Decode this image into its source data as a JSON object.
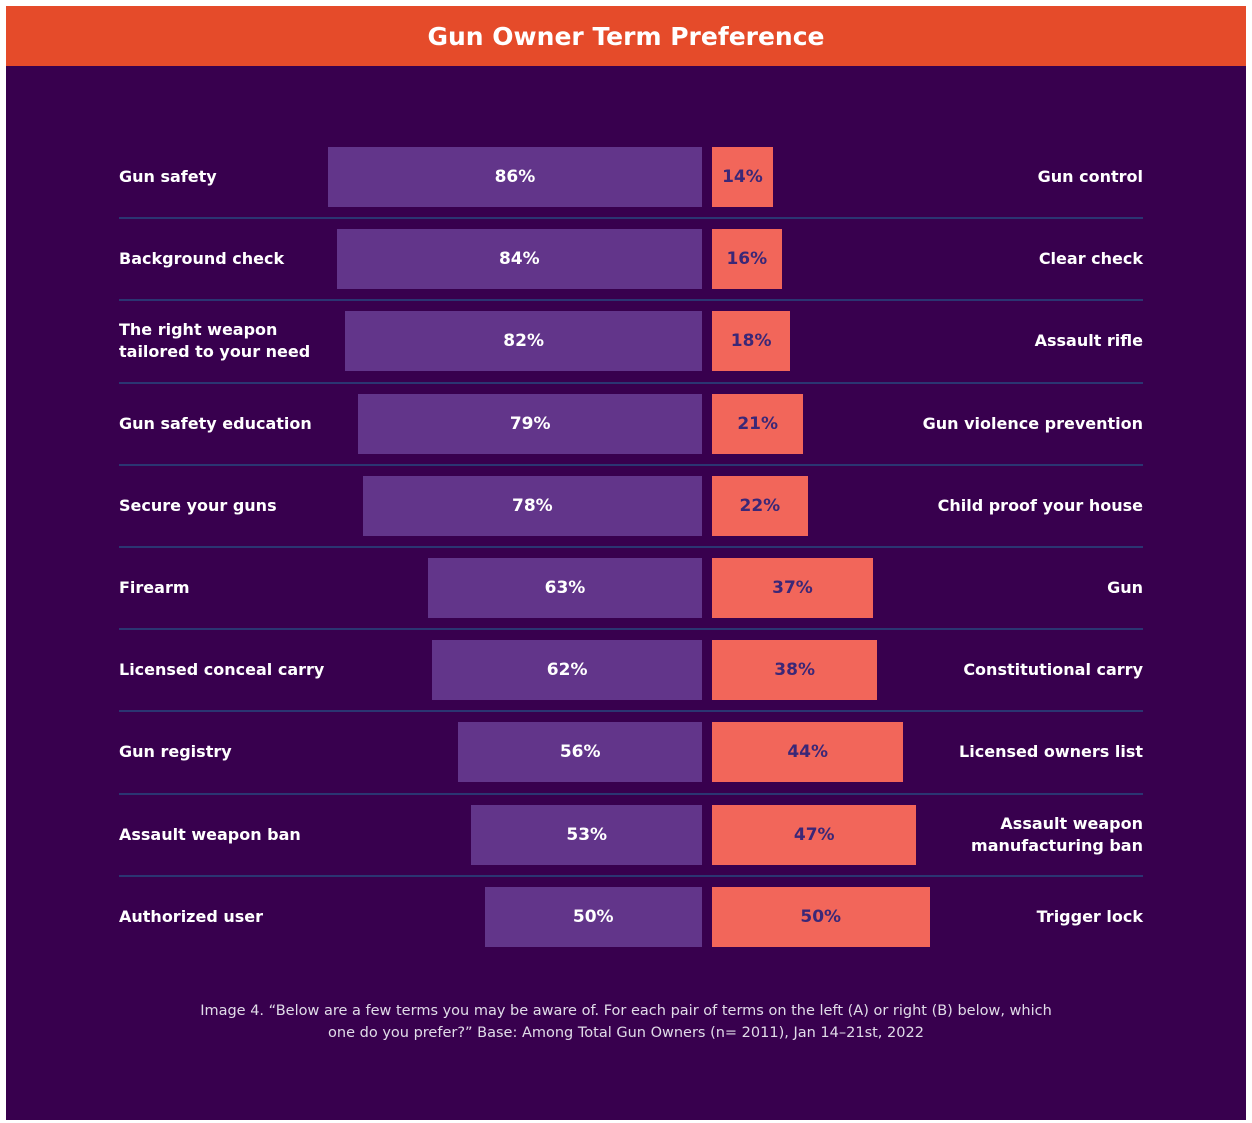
{
  "chart_data": {
    "type": "diverging-bar",
    "title": "Gun Owner Term Preference",
    "left_terms": [
      "Gun safety",
      "Background check",
      "The right weapon\ntailored to your need",
      "Gun safety education",
      "Secure your guns",
      "Firearm",
      "Licensed conceal carry",
      "Gun registry",
      "Assault weapon ban",
      "Authorized user"
    ],
    "right_terms": [
      "Gun control",
      "Clear check",
      "Assault rifle",
      "Gun violence prevention",
      "Child proof your house",
      "Gun",
      "Constitutional carry",
      "Licensed owners list",
      "Assault weapon\nmanufacturing ban",
      "Trigger lock"
    ],
    "series": [
      {
        "color": "#62358a",
        "values": [
          86,
          84,
          82,
          79,
          78,
          63,
          62,
          56,
          53,
          50
        ],
        "value_labels": [
          "86%",
          "84%",
          "82%",
          "79%",
          "78%",
          "63%",
          "62%",
          "56%",
          "53%",
          "50%"
        ]
      },
      {
        "color": "#f2665a",
        "values": [
          14,
          16,
          18,
          21,
          22,
          37,
          38,
          44,
          47,
          50
        ],
        "value_labels": [
          "14%",
          "16%",
          "18%",
          "21%",
          "22%",
          "37%",
          "38%",
          "44%",
          "47%",
          "50%"
        ]
      }
    ],
    "footnote": "Image 4. “Below are a few terms you may be aware of. For each pair of terms on the left (A) or right (B) below, which\none do you prefer?” Base: Among Total Gun Owners (n= 2011), Jan 14–21st, 2022"
  }
}
